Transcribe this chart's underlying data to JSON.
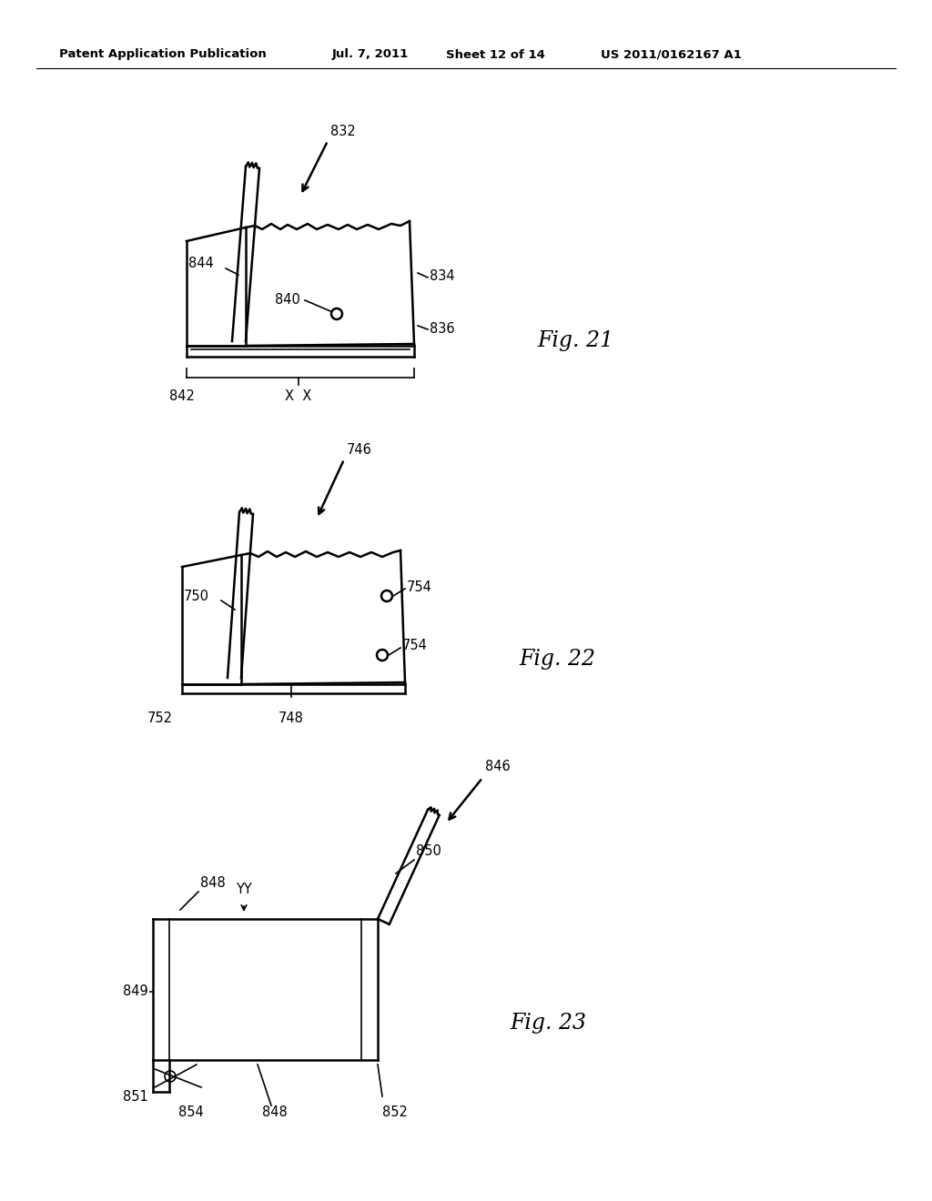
{
  "bg_color": "#ffffff",
  "header_text": "Patent Application Publication",
  "header_date": "Jul. 7, 2011",
  "header_sheet": "Sheet 12 of 14",
  "header_patent": "US 2011/0162167 A1",
  "fig21_label": "Fig. 21",
  "fig22_label": "Fig. 22",
  "fig23_label": "Fig. 23",
  "line_color": "#000000",
  "lw_main": 1.8,
  "lw_thin": 1.2,
  "label_fontsize": 10.5,
  "fig_label_fontsize": 17
}
